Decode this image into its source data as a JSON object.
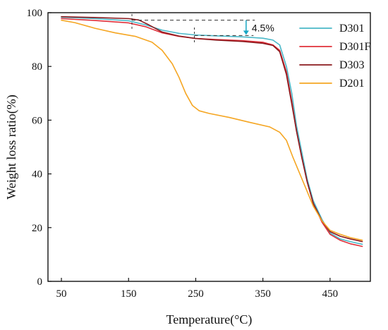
{
  "chart_data": {
    "type": "line",
    "title": "",
    "xlabel": "Temperature(°C)",
    "ylabel": "Weight loss ratio(%)",
    "xlim": [
      30,
      510
    ],
    "ylim": [
      0,
      100
    ],
    "xticks": [
      50,
      150,
      250,
      350,
      450
    ],
    "yticks": [
      0,
      20,
      40,
      60,
      80,
      100
    ],
    "grid": false,
    "legend": {
      "placement": "top-right",
      "entries": [
        "D301",
        "D301F",
        "D303",
        "D201"
      ]
    },
    "series": [
      {
        "name": "D301",
        "color": "#4ab8c8",
        "points": [
          [
            50,
            98.3
          ],
          [
            100,
            97.8
          ],
          [
            150,
            97.0
          ],
          [
            175,
            95.5
          ],
          [
            200,
            93.5
          ],
          [
            225,
            92.3
          ],
          [
            250,
            91.7
          ],
          [
            280,
            91.4
          ],
          [
            320,
            91.0
          ],
          [
            350,
            90.5
          ],
          [
            365,
            89.8
          ],
          [
            375,
            88.0
          ],
          [
            385,
            80.0
          ],
          [
            393,
            70.0
          ],
          [
            400,
            58.0
          ],
          [
            408,
            48.0
          ],
          [
            416,
            38.0
          ],
          [
            425,
            30.0
          ],
          [
            438,
            23.0
          ],
          [
            450,
            18.0
          ],
          [
            465,
            15.8
          ],
          [
            480,
            14.8
          ],
          [
            498,
            13.8
          ]
        ]
      },
      {
        "name": "D301F",
        "color": "#e0303a",
        "points": [
          [
            50,
            97.8
          ],
          [
            100,
            97.1
          ],
          [
            150,
            96.2
          ],
          [
            175,
            94.8
          ],
          [
            200,
            92.5
          ],
          [
            225,
            91.2
          ],
          [
            250,
            90.4
          ],
          [
            280,
            90.0
          ],
          [
            320,
            89.6
          ],
          [
            350,
            89.0
          ],
          [
            365,
            88.0
          ],
          [
            375,
            86.0
          ],
          [
            385,
            78.0
          ],
          [
            393,
            67.0
          ],
          [
            400,
            56.0
          ],
          [
            408,
            46.0
          ],
          [
            416,
            37.0
          ],
          [
            425,
            29.0
          ],
          [
            438,
            22.0
          ],
          [
            450,
            17.5
          ],
          [
            465,
            15.3
          ],
          [
            480,
            14.0
          ],
          [
            498,
            13.0
          ]
        ]
      },
      {
        "name": "D303",
        "color": "#8b1a1e",
        "points": [
          [
            50,
            98.5
          ],
          [
            100,
            98.2
          ],
          [
            150,
            97.8
          ],
          [
            165,
            97.3
          ],
          [
            180,
            95.5
          ],
          [
            200,
            92.8
          ],
          [
            225,
            91.3
          ],
          [
            250,
            90.4
          ],
          [
            280,
            89.8
          ],
          [
            320,
            89.3
          ],
          [
            350,
            88.6
          ],
          [
            365,
            87.8
          ],
          [
            375,
            85.5
          ],
          [
            385,
            77.0
          ],
          [
            393,
            66.0
          ],
          [
            400,
            56.0
          ],
          [
            408,
            46.0
          ],
          [
            416,
            37.0
          ],
          [
            425,
            29.0
          ],
          [
            438,
            22.5
          ],
          [
            450,
            18.5
          ],
          [
            465,
            16.8
          ],
          [
            480,
            15.8
          ],
          [
            498,
            14.8
          ]
        ]
      },
      {
        "name": "D201",
        "color": "#f5a623",
        "points": [
          [
            50,
            97.2
          ],
          [
            70,
            96.3
          ],
          [
            100,
            94.2
          ],
          [
            130,
            92.5
          ],
          [
            160,
            91.2
          ],
          [
            185,
            89.0
          ],
          [
            200,
            86.0
          ],
          [
            215,
            81.0
          ],
          [
            225,
            76.0
          ],
          [
            235,
            70.0
          ],
          [
            245,
            65.5
          ],
          [
            255,
            63.5
          ],
          [
            270,
            62.5
          ],
          [
            300,
            61.0
          ],
          [
            330,
            59.2
          ],
          [
            360,
            57.5
          ],
          [
            375,
            55.5
          ],
          [
            385,
            52.5
          ],
          [
            395,
            46.0
          ],
          [
            405,
            40.0
          ],
          [
            415,
            34.0
          ],
          [
            425,
            28.0
          ],
          [
            438,
            22.5
          ],
          [
            450,
            19.0
          ],
          [
            465,
            17.5
          ],
          [
            480,
            16.3
          ],
          [
            498,
            15.3
          ]
        ]
      }
    ],
    "annotations": [
      {
        "label": "4.5%",
        "x_from": 155,
        "x_to": 338,
        "y_top": 97.2,
        "y_bottom": 91.5,
        "arrow_x": 325
      }
    ]
  }
}
